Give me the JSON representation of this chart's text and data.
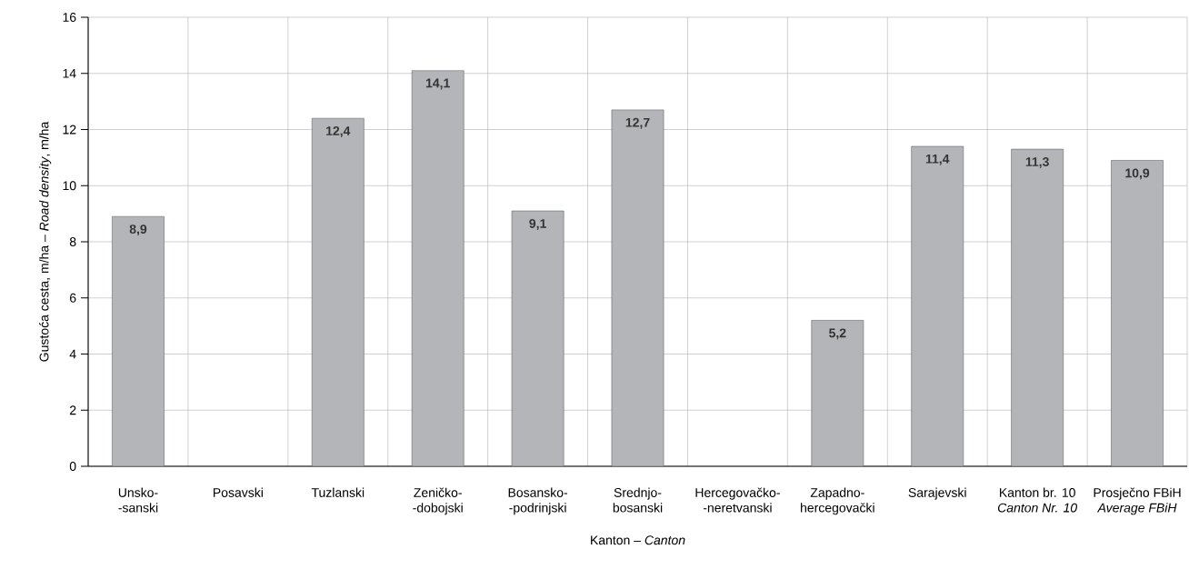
{
  "chart_data": {
    "type": "bar",
    "xlabel": "Kanton – *Canton*",
    "ylabel": "Gustoća cesta, m/ha – *Road density*, m/ha",
    "categories": [
      "Unsko-\n-sanski",
      "Posavski",
      "Tuzlanski",
      "Zeničko-\n-dobojski",
      "Bosansko-\n-podrinjski",
      "Srednjo-\nbosanski",
      "Hercegovačko-\n-neretvanski",
      "Zapadno-\nhercegovački",
      "Sarajevski",
      "Kanton br. 10\n*Canton Nr. 10*",
      "Prosječno FBiH\n*Average FBiH*"
    ],
    "values": [
      8.9,
      null,
      12.4,
      14.1,
      9.1,
      12.7,
      null,
      5.2,
      11.4,
      11.3,
      10.9
    ],
    "color": "#b4b5b9",
    "ylim": [
      0,
      16
    ],
    "yticks": [
      0,
      2,
      4,
      6,
      8,
      10,
      12,
      14,
      16
    ],
    "value_labels": [
      "8,9",
      null,
      "12,4",
      "14,1",
      "9,1",
      "12,7",
      null,
      "5,2",
      "11,4",
      "11,3",
      "10,9"
    ],
    "grid": true
  }
}
